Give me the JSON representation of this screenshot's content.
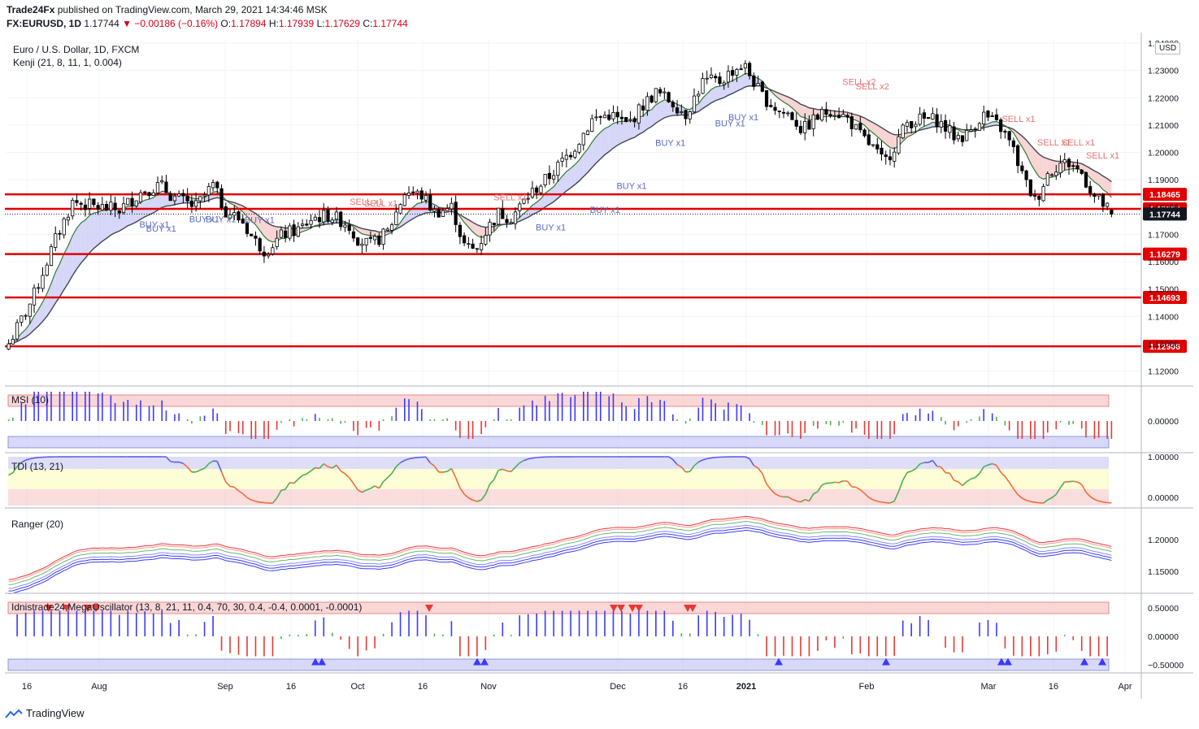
{
  "header": {
    "publisher": "Trade24Fx",
    "published_text": "published on TradingView.com, March 29, 2021 14:34:46 MSK",
    "symbol": "FX:EURUSD, 1D",
    "last": "1.17744",
    "change": "−0.00186 (−0.16%)",
    "o_label": "O:",
    "o": "1.17894",
    "h_label": "H:",
    "h": "1.17939",
    "l_label": "L:",
    "l": "1.17629",
    "c_label": "C:",
    "c": "1.17744"
  },
  "chart_title": "Euro / U.S. Dollar, 1D, FXCM",
  "kenji_label": "Kenji (21, 8, 11, 1, 0.004)",
  "currency_badge": "USD",
  "footer_brand": "TradingView",
  "colors": {
    "red_line": "#e00000",
    "up": "#ffffff",
    "down": "#000000",
    "blue": "#3a3aff",
    "pink_fill": "#f7c6c6",
    "blue_fill": "#c8c8f5"
  },
  "chart_data": [
    {
      "type": "candlestick",
      "name": "main",
      "x_ticks": [
        "16",
        "Aug",
        "Sep",
        "16",
        "Oct",
        "16",
        "Nov",
        "Dec",
        "16",
        "2021",
        "Feb",
        "Mar",
        "16",
        "Apr"
      ],
      "y_ticks": [
        "1.24000",
        "1.23000",
        "1.22000",
        "1.21000",
        "1.20000",
        "1.19000",
        "1.18000",
        "1.17000",
        "1.16000",
        "1.15000",
        "1.14000",
        "1.13000",
        "1.12000"
      ],
      "y_values": [
        1.24,
        1.23,
        1.22,
        1.21,
        1.2,
        1.19,
        1.18,
        1.17,
        1.16,
        1.15,
        1.14,
        1.13,
        1.12
      ],
      "ylim": [
        1.116,
        1.2415
      ],
      "levels": [
        {
          "value": 1.18465,
          "label": "1.18465"
        },
        {
          "value": 1.17934,
          "label": "1.17934"
        },
        {
          "value": 1.16279,
          "label": "1.16279"
        },
        {
          "value": 1.14693,
          "label": "1.14693"
        },
        {
          "value": 1.12906,
          "label": "1.12906"
        }
      ],
      "last_price": {
        "value": 1.17744,
        "label": "1.17744"
      },
      "signals": [
        {
          "text": "BUY x1",
          "x": 0.12,
          "y": 1.1725
        },
        {
          "text": "BUY x1",
          "x": 0.126,
          "y": 1.171
        },
        {
          "text": "BUY x1",
          "x": 0.165,
          "y": 1.1745
        },
        {
          "text": "BUY x1",
          "x": 0.18,
          "y": 1.1745
        },
        {
          "text": "BUY x1",
          "x": 0.215,
          "y": 1.1742
        },
        {
          "text": "SELL x1",
          "x": 0.31,
          "y": 1.1808
        },
        {
          "text": "SELL x1",
          "x": 0.323,
          "y": 1.1803
        },
        {
          "text": "SELL x1",
          "x": 0.44,
          "y": 1.1825
        },
        {
          "text": "BUY x1",
          "x": 0.478,
          "y": 1.1715
        },
        {
          "text": "BUY x1",
          "x": 0.527,
          "y": 1.1778
        },
        {
          "text": "BUY x1",
          "x": 0.551,
          "y": 1.1867
        },
        {
          "text": "BUY x1",
          "x": 0.586,
          "y": 1.2024
        },
        {
          "text": "BUY x1",
          "x": 0.64,
          "y": 1.2095
        },
        {
          "text": "BUY x1",
          "x": 0.652,
          "y": 1.2118
        },
        {
          "text": "SELL x2",
          "x": 0.755,
          "y": 1.2247
        },
        {
          "text": "SELL x2",
          "x": 0.767,
          "y": 1.2231
        },
        {
          "text": "SELL x1",
          "x": 0.899,
          "y": 1.2111
        },
        {
          "text": "SELL x1",
          "x": 0.931,
          "y": 1.2025
        },
        {
          "text": "SELL x1",
          "x": 0.953,
          "y": 1.2025
        },
        {
          "text": "SELL x1",
          "x": 0.975,
          "y": 1.1978
        }
      ]
    },
    {
      "type": "bar",
      "name": "msi",
      "label": "MSI (10)",
      "y_ticks": [
        "0.00000"
      ],
      "y_values": [
        0
      ]
    },
    {
      "type": "line",
      "name": "tdi",
      "label": "TDI (13, 21)",
      "y_ticks": [
        "1.00000",
        "0.00000"
      ],
      "y_values": [
        1,
        0
      ]
    },
    {
      "type": "line",
      "name": "ranger",
      "label": "Ranger (20)",
      "y_ticks": [
        "1.20000",
        "1.15000"
      ],
      "y_values": [
        1.2,
        1.15
      ]
    },
    {
      "type": "bar",
      "name": "mega",
      "label": "Idnistrade24 MegaOscillator (13, 8, 21, 11, 0.4, 70, 30, 0.4, -0.4, 0.0001, -0.0001)",
      "y_ticks": [
        "0.50000",
        "0.00000",
        "−0.50000"
      ],
      "y_values": [
        0.5,
        0,
        -0.5
      ]
    }
  ]
}
